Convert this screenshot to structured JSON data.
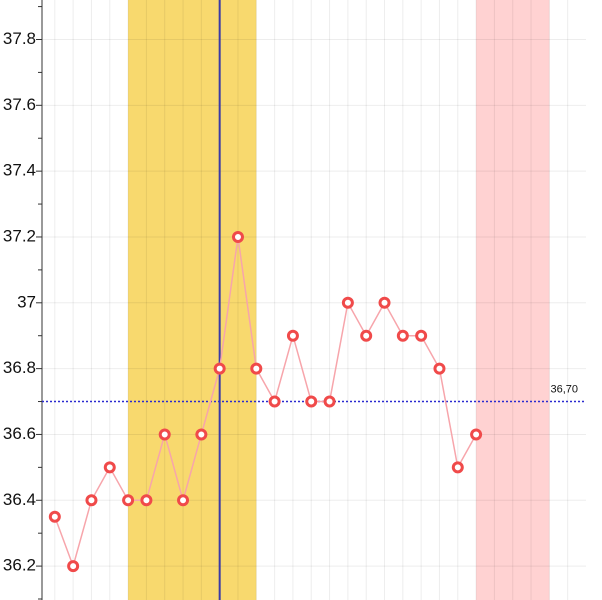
{
  "chart_data": {
    "type": "line",
    "x": [
      1,
      2,
      3,
      4,
      5,
      6,
      7,
      8,
      9,
      10,
      11,
      12,
      13,
      14,
      15,
      16,
      17,
      18,
      19,
      20,
      21,
      22,
      23,
      24
    ],
    "series": [
      {
        "color": "#f7a5ab",
        "marker_color": "#f04a4a",
        "values": [
          36.35,
          36.2,
          36.4,
          36.5,
          36.4,
          36.4,
          36.6,
          36.4,
          36.6,
          36.8,
          37.2,
          36.8,
          36.7,
          36.9,
          36.7,
          36.7,
          37.0,
          36.9,
          37.0,
          36.9,
          36.9,
          36.8,
          36.5,
          36.6
        ]
      }
    ],
    "xlim": [
      0.3,
      30
    ],
    "ylim": [
      36.097,
      37.92
    ],
    "yticks": [
      36.2,
      36.4,
      36.6,
      36.8,
      {
        "value": 37,
        "label": "37"
      },
      37.2,
      37.4,
      37.6,
      37.8
    ],
    "yminor": [
      36.1,
      36.3,
      36.5,
      36.7,
      36.9,
      37.1,
      37.3,
      37.5,
      37.7,
      37.9
    ],
    "xgrid": [
      1,
      2,
      3,
      4,
      5,
      6,
      7,
      8,
      9,
      10,
      11,
      12,
      13,
      14,
      15,
      16,
      17,
      18,
      19,
      20,
      21,
      22,
      23,
      24,
      25,
      26,
      27,
      28,
      29
    ],
    "grid": true,
    "bands": [
      {
        "start": 5,
        "end": 12,
        "color": "#f8d96e"
      },
      {
        "start": 24,
        "end": 28,
        "color": "#ffd2d2"
      }
    ],
    "marker_line": {
      "x": 10,
      "color": "#3a3aa8"
    },
    "reference_line": {
      "value": 36.7,
      "value_label": "36,70",
      "color": "#2a2ad0"
    }
  }
}
